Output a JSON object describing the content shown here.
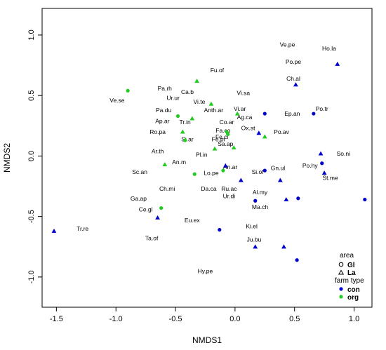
{
  "chart_data": {
    "type": "scatter",
    "xlabel": "NMDS1",
    "ylabel": "NMDS2",
    "xlim": [
      -1.62,
      1.15
    ],
    "ylim": [
      -1.25,
      1.22
    ],
    "xticks": [
      -1.5,
      -1.0,
      -0.5,
      0.0,
      0.5,
      1.0
    ],
    "xtick_labels": [
      "-1.5",
      "-1.0",
      "-0.5",
      "0.0",
      "0.5",
      "1.0"
    ],
    "yticks": [
      -1.0,
      -0.5,
      0.0,
      0.5,
      1.0
    ],
    "ytick_labels": [
      "-1.0",
      "-0.5",
      "0.0",
      "0.5",
      "1.0"
    ],
    "colors": {
      "con": "#0000cc",
      "org": "#22cc22"
    },
    "legend": {
      "placement": "bottom-right",
      "area_title": "area",
      "area_items": [
        {
          "label": "Gl",
          "shape": "circle"
        },
        {
          "label": "La",
          "shape": "triangle"
        }
      ],
      "farm_title": "farm type",
      "farm_items": [
        {
          "label": "con",
          "color": "#0000cc"
        },
        {
          "label": "org",
          "color": "#22cc22"
        }
      ]
    },
    "sites": [
      {
        "x": -0.9,
        "y": 0.54,
        "shape": "circle",
        "farm": "org"
      },
      {
        "x": -0.59,
        "y": -0.07,
        "shape": "triangle",
        "farm": "org"
      },
      {
        "x": -0.62,
        "y": -0.43,
        "shape": "circle",
        "farm": "org"
      },
      {
        "x": -0.48,
        "y": 0.33,
        "shape": "circle",
        "farm": "org"
      },
      {
        "x": -0.44,
        "y": 0.2,
        "shape": "triangle",
        "farm": "org"
      },
      {
        "x": -0.42,
        "y": 0.13,
        "shape": "circle",
        "farm": "org"
      },
      {
        "x": -0.36,
        "y": 0.31,
        "shape": "triangle",
        "farm": "org"
      },
      {
        "x": -0.34,
        "y": -0.15,
        "shape": "circle",
        "farm": "org"
      },
      {
        "x": -0.32,
        "y": 0.62,
        "shape": "triangle",
        "farm": "org"
      },
      {
        "x": -0.2,
        "y": 0.43,
        "shape": "triangle",
        "farm": "org"
      },
      {
        "x": -0.17,
        "y": 0.06,
        "shape": "triangle",
        "farm": "org"
      },
      {
        "x": -0.1,
        "y": -0.12,
        "shape": "circle",
        "farm": "org"
      },
      {
        "x": -0.07,
        "y": 0.2,
        "shape": "circle",
        "farm": "org"
      },
      {
        "x": -0.06,
        "y": 0.18,
        "shape": "circle",
        "farm": "org"
      },
      {
        "x": -0.01,
        "y": 0.07,
        "shape": "triangle",
        "farm": "org"
      },
      {
        "x": 0.02,
        "y": 0.35,
        "shape": "triangle",
        "farm": "org"
      },
      {
        "x": 0.25,
        "y": 0.16,
        "shape": "triangle",
        "farm": "org"
      },
      {
        "x": -1.52,
        "y": -0.62,
        "shape": "triangle",
        "farm": "con"
      },
      {
        "x": -0.65,
        "y": -0.51,
        "shape": "triangle",
        "farm": "con"
      },
      {
        "x": -0.13,
        "y": -0.61,
        "shape": "circle",
        "farm": "con"
      },
      {
        "x": -0.08,
        "y": -0.08,
        "shape": "triangle",
        "farm": "con"
      },
      {
        "x": 0.05,
        "y": -0.2,
        "shape": "triangle",
        "farm": "con"
      },
      {
        "x": 0.17,
        "y": -0.37,
        "shape": "circle",
        "farm": "con"
      },
      {
        "x": 0.17,
        "y": -0.75,
        "shape": "triangle",
        "farm": "con"
      },
      {
        "x": 0.2,
        "y": 0.19,
        "shape": "triangle",
        "farm": "con"
      },
      {
        "x": 0.25,
        "y": -0.12,
        "shape": "circle",
        "farm": "con"
      },
      {
        "x": 0.25,
        "y": 0.35,
        "shape": "circle",
        "farm": "con"
      },
      {
        "x": 0.38,
        "y": -0.2,
        "shape": "triangle",
        "farm": "con"
      },
      {
        "x": 0.41,
        "y": -0.75,
        "shape": "triangle",
        "farm": "con"
      },
      {
        "x": 0.43,
        "y": -0.36,
        "shape": "triangle",
        "farm": "con"
      },
      {
        "x": 0.51,
        "y": 0.59,
        "shape": "triangle",
        "farm": "con"
      },
      {
        "x": 0.52,
        "y": -0.86,
        "shape": "circle",
        "farm": "con"
      },
      {
        "x": 0.53,
        "y": -0.35,
        "shape": "circle",
        "farm": "con"
      },
      {
        "x": 0.66,
        "y": 0.35,
        "shape": "circle",
        "farm": "con"
      },
      {
        "x": 0.72,
        "y": 0.02,
        "shape": "triangle",
        "farm": "con"
      },
      {
        "x": 0.73,
        "y": -0.06,
        "shape": "circle",
        "farm": "con"
      },
      {
        "x": 0.75,
        "y": -0.14,
        "shape": "triangle",
        "farm": "con"
      },
      {
        "x": 0.86,
        "y": 0.76,
        "shape": "triangle",
        "farm": "con"
      },
      {
        "x": 1.09,
        "y": -0.36,
        "shape": "circle",
        "farm": "con"
      }
    ],
    "species": [
      {
        "label": "Ve.pe",
        "x": 0.44,
        "y": 0.92
      },
      {
        "label": "Ho.la",
        "x": 0.79,
        "y": 0.89
      },
      {
        "label": "Po.pe",
        "x": 0.49,
        "y": 0.78
      },
      {
        "label": "Fu.of",
        "x": -0.15,
        "y": 0.71
      },
      {
        "label": "Ch.al",
        "x": 0.49,
        "y": 0.64
      },
      {
        "label": "Pa.rh",
        "x": -0.59,
        "y": 0.56
      },
      {
        "label": "Ca.b",
        "x": -0.4,
        "y": 0.53
      },
      {
        "label": "Vi.sa",
        "x": 0.07,
        "y": 0.52
      },
      {
        "label": "Ur.ur",
        "x": -0.52,
        "y": 0.48
      },
      {
        "label": "Ve.se",
        "x": -0.99,
        "y": 0.46
      },
      {
        "label": "Vi.te",
        "x": -0.3,
        "y": 0.45
      },
      {
        "label": "Po.tr",
        "x": 0.73,
        "y": 0.39
      },
      {
        "label": "Pa.du",
        "x": -0.6,
        "y": 0.38
      },
      {
        "label": "Anth.ar",
        "x": -0.18,
        "y": 0.38
      },
      {
        "label": "Vi.ar",
        "x": 0.04,
        "y": 0.39
      },
      {
        "label": "Ep.an",
        "x": 0.48,
        "y": 0.35
      },
      {
        "label": "Ag.ca",
        "x": 0.08,
        "y": 0.32
      },
      {
        "label": "Ap.ar",
        "x": -0.61,
        "y": 0.29
      },
      {
        "label": "Tr.in",
        "x": -0.42,
        "y": 0.28
      },
      {
        "label": "Co.ar",
        "x": -0.07,
        "y": 0.28
      },
      {
        "label": "Ox.st",
        "x": 0.11,
        "y": 0.23
      },
      {
        "label": "Fa.co",
        "x": -0.1,
        "y": 0.21
      },
      {
        "label": "Po.av",
        "x": 0.39,
        "y": 0.2
      },
      {
        "label": "Ro.pa",
        "x": -0.65,
        "y": 0.2
      },
      {
        "label": "Si.ar",
        "x": -0.4,
        "y": 0.14
      },
      {
        "label": "Fe.ci",
        "x": -0.11,
        "y": 0.16
      },
      {
        "label": "Fe.pi",
        "x": -0.14,
        "y": 0.14
      },
      {
        "label": "Sa.ap",
        "x": -0.08,
        "y": 0.1
      },
      {
        "label": "Ar.th",
        "x": -0.65,
        "y": 0.04
      },
      {
        "label": "So.ni",
        "x": 0.91,
        "y": 0.02
      },
      {
        "label": "Pl.in",
        "x": -0.28,
        "y": 0.01
      },
      {
        "label": "An.m",
        "x": -0.47,
        "y": -0.05
      },
      {
        "label": "Po.hy",
        "x": 0.63,
        "y": -0.08
      },
      {
        "label": "An.ar",
        "x": -0.04,
        "y": -0.09
      },
      {
        "label": "Gn.ul",
        "x": 0.36,
        "y": -0.1
      },
      {
        "label": "Sc.an",
        "x": -0.8,
        "y": -0.13
      },
      {
        "label": "Si.of",
        "x": 0.19,
        "y": -0.13
      },
      {
        "label": "Lo.pe",
        "x": -0.2,
        "y": -0.14
      },
      {
        "label": "St.me",
        "x": 0.8,
        "y": -0.18
      },
      {
        "label": "Ch.mi",
        "x": -0.57,
        "y": -0.27
      },
      {
        "label": "Da.ca",
        "x": -0.22,
        "y": -0.27
      },
      {
        "label": "Ru.ac",
        "x": -0.05,
        "y": -0.27
      },
      {
        "label": "Al.my",
        "x": 0.21,
        "y": -0.3
      },
      {
        "label": "Ur.di",
        "x": -0.05,
        "y": -0.33
      },
      {
        "label": "Ga.ap",
        "x": -0.81,
        "y": -0.35
      },
      {
        "label": "Ma.ch",
        "x": 0.21,
        "y": -0.42
      },
      {
        "label": "Ce.gl",
        "x": -0.75,
        "y": -0.44
      },
      {
        "label": "Eu.ex",
        "x": -0.36,
        "y": -0.53
      },
      {
        "label": "Ki.el",
        "x": 0.14,
        "y": -0.58
      },
      {
        "label": "Tr.re",
        "x": -1.28,
        "y": -0.6
      },
      {
        "label": "Ta.of",
        "x": -0.7,
        "y": -0.68
      },
      {
        "label": "Ju.bu",
        "x": 0.16,
        "y": -0.69
      },
      {
        "label": "Hy.pe",
        "x": -0.25,
        "y": -0.95
      }
    ]
  }
}
